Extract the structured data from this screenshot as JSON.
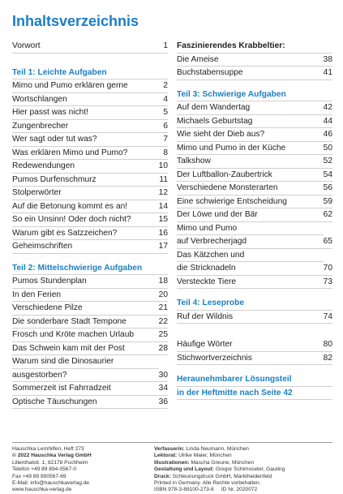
{
  "title": "Inhaltsverzeichnis",
  "left": [
    {
      "title": "Vorwort",
      "page": 1
    },
    {
      "heading": "Teil 1: Leichte Aufgaben"
    },
    {
      "title": "Mimo und Pumo erklären gerne",
      "page": 2
    },
    {
      "title": "Wortschlangen",
      "page": 4
    },
    {
      "title": "Hier passt was nicht!",
      "page": 5
    },
    {
      "title": "Zungenbrecher",
      "page": 6
    },
    {
      "title": "Wer sagt oder tut was?",
      "page": 7
    },
    {
      "title": "Was erklären Mimo und Pumo?",
      "page": 8
    },
    {
      "title": "Redewendungen",
      "page": 10
    },
    {
      "title": "Pumos Durfenschmurz",
      "page": 11
    },
    {
      "title": "Stolperwörter",
      "page": 12
    },
    {
      "title": "Auf die Betonung kommt es an!",
      "page": 14
    },
    {
      "title": "So ein Unsinn! Oder doch nicht?",
      "page": 15
    },
    {
      "title": "Warum gibt es Satzzeichen?",
      "page": 16
    },
    {
      "title": "Geheimschriften",
      "page": 17
    },
    {
      "heading": "Teil 2: Mittelschwierige Aufgaben"
    },
    {
      "title": "Pumos Stundenplan",
      "page": 18
    },
    {
      "title": "In den Ferien",
      "page": 20
    },
    {
      "title": "Verschiedene Pilze",
      "page": 21
    },
    {
      "title": "Die sonderbare Stadt Tempone",
      "page": 22
    },
    {
      "title": "Frosch und Kröte machen Urlaub",
      "page": 25
    },
    {
      "title": "Das Schwein kam mit der Post",
      "page": 28
    },
    {
      "lines": [
        "Warum sind die Dinosaurier",
        "ausgestorben?"
      ],
      "page": 30
    },
    {
      "title": "Sommerzeit ist Fahrradzeit",
      "page": 34
    },
    {
      "title": "Optische Täuschungen",
      "page": 36
    }
  ],
  "right": [
    {
      "subheading": "Faszinierendes Krabbeltier:"
    },
    {
      "title": "Die Ameise",
      "page": 38
    },
    {
      "title": "Buchstabensuppe",
      "page": 41
    },
    {
      "heading": "Teil 3: Schwierige Aufgaben"
    },
    {
      "title": "Auf dem Wandertag",
      "page": 42
    },
    {
      "title": "Michaels Geburtstag",
      "page": 44
    },
    {
      "title": "Wie sieht der Dieb aus?",
      "page": 46
    },
    {
      "title": "Mimo und Pumo in der Küche",
      "page": 50
    },
    {
      "title": "Talkshow",
      "page": 52
    },
    {
      "title": "Der Luftballon-Zaubertrick",
      "page": 54
    },
    {
      "title": "Verschiedene Monsterarten",
      "page": 56
    },
    {
      "title": "Eine schwierige Entscheidung",
      "page": 59
    },
    {
      "title": "Der Löwe und der Bär",
      "page": 62
    },
    {
      "lines": [
        "Mimo und Pumo",
        "auf Verbrecherjagd"
      ],
      "page": 65
    },
    {
      "lines": [
        "Das Kätzchen und",
        "die Stricknadeln"
      ],
      "page": 70
    },
    {
      "title": "Versteckte Tiere",
      "page": 73
    },
    {
      "heading": "Teil 4: Leseprobe"
    },
    {
      "title": "Ruf der Wildnis",
      "page": 74
    },
    {
      "title": "Häufige Wörter",
      "page": 80
    },
    {
      "title": "Stichwortverzeichnis",
      "page": 82
    },
    {
      "note_lines": [
        "Heraunehmbarer Lösungsteil",
        "in der Heftmitte nach Seite 42"
      ]
    }
  ],
  "footer": {
    "left": [
      "Hauschka Lernhilfen, Heft 273",
      "© 2022 Hauschka Verlag GmbH",
      "Lilienthalstr. 1, 82178 Puchheim",
      "Telefon +49 89 894-0567-0",
      "Fax +49 89 890567-69",
      "E-Mail: info@hauschkaverlag.de",
      "www.hauschka-verlag.de"
    ],
    "right": [
      {
        "label": "Verfasserin:",
        "text": "Linda Neumann, München"
      },
      {
        "label": "Lektorat:",
        "text": "Ulrike Maier, München"
      },
      {
        "label": "Illustrationen:",
        "text": "Mascha Greune, München"
      },
      {
        "label": "Gestaltung und Layout:",
        "text": "Gregor Schimoseter, Gauting"
      },
      {
        "label": "Druck:",
        "text": "Schleunungdruck GmbH, Marktheidenfeld"
      },
      {
        "text": "Printed in Germany. Alle Rechte vorbehalten."
      },
      {
        "text": "ISBN 978-3-88100-273-8     ID Nr. 2020072"
      }
    ]
  }
}
